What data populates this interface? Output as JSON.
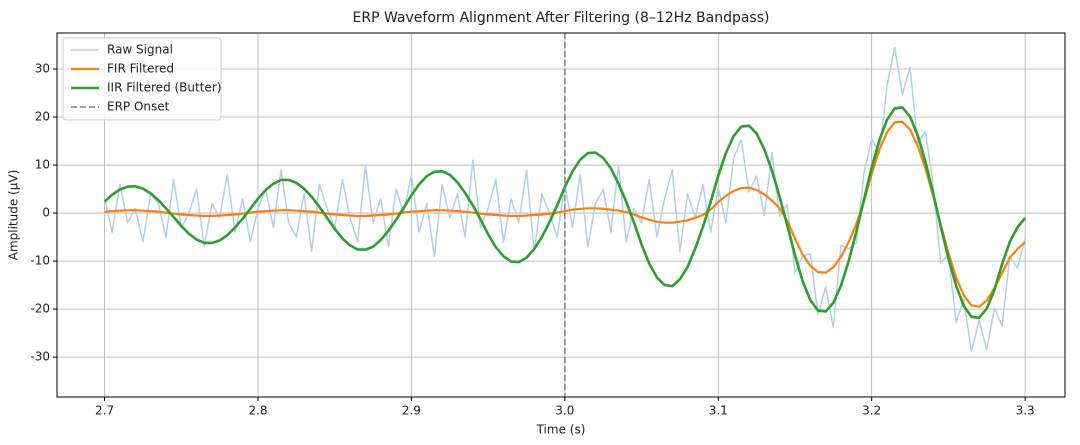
{
  "chart_data": {
    "type": "line",
    "title": "ERP Waveform Alignment After Filtering (8–12Hz Bandpass)",
    "xlabel": "Time (s)",
    "ylabel": "Amplitude (µV)",
    "x": [
      2.7,
      2.705,
      2.71,
      2.715,
      2.72,
      2.725,
      2.73,
      2.735,
      2.74,
      2.745,
      2.75,
      2.755,
      2.76,
      2.765,
      2.77,
      2.775,
      2.78,
      2.785,
      2.79,
      2.795,
      2.8,
      2.805,
      2.81,
      2.815,
      2.82,
      2.825,
      2.83,
      2.835,
      2.84,
      2.845,
      2.85,
      2.855,
      2.86,
      2.865,
      2.87,
      2.875,
      2.88,
      2.885,
      2.89,
      2.895,
      2.9,
      2.905,
      2.91,
      2.915,
      2.92,
      2.925,
      2.93,
      2.935,
      2.94,
      2.945,
      2.95,
      2.955,
      2.96,
      2.965,
      2.97,
      2.975,
      2.98,
      2.985,
      2.99,
      2.995,
      3.0,
      3.005,
      3.01,
      3.015,
      3.02,
      3.025,
      3.03,
      3.035,
      3.04,
      3.045,
      3.05,
      3.055,
      3.06,
      3.065,
      3.07,
      3.075,
      3.08,
      3.085,
      3.09,
      3.095,
      3.1,
      3.105,
      3.11,
      3.115,
      3.12,
      3.125,
      3.13,
      3.135,
      3.14,
      3.145,
      3.15,
      3.155,
      3.16,
      3.165,
      3.17,
      3.175,
      3.18,
      3.185,
      3.19,
      3.195,
      3.2,
      3.205,
      3.21,
      3.215,
      3.22,
      3.225,
      3.23,
      3.235,
      3.24,
      3.245,
      3.25,
      3.255,
      3.26,
      3.265,
      3.27,
      3.275,
      3.28,
      3.285,
      3.29,
      3.295,
      3.3
    ],
    "series": [
      {
        "name": "Raw Signal",
        "color": "#b3d0e8",
        "width": 1.5,
        "values": [
          3,
          -4,
          6,
          -2,
          1,
          -6,
          4,
          2,
          -5,
          7,
          -3,
          0,
          5,
          -7,
          2,
          -1,
          8,
          -4,
          3,
          -6,
          1,
          5,
          -3,
          9,
          -2,
          -5,
          4,
          -8,
          6,
          1,
          -3,
          7,
          -1,
          -6,
          10,
          -2,
          3,
          -7,
          5,
          0,
          8,
          -4,
          2,
          -9,
          6,
          -1,
          4,
          -5,
          11,
          -3,
          1,
          7,
          -6,
          3,
          -2,
          9,
          -8,
          4,
          0,
          -5,
          6,
          -3,
          8,
          -7,
          2,
          5,
          -4,
          10,
          -6,
          1,
          -2,
          7,
          -5,
          3,
          9,
          -8,
          4,
          -1,
          6,
          -4,
          5.2,
          -2.0,
          11.4,
          15.3,
          4.4,
          7.7,
          -0.5,
          12.6,
          -0.6,
          1.8,
          -12.4,
          -9.0,
          -8.4,
          -21.2,
          -15.4,
          -23.8,
          -6.7,
          -7.4,
          -6.2,
          8.4,
          15.5,
          12.5,
          26.5,
          34.5,
          24.6,
          30.4,
          14.6,
          17.0,
          6.0,
          -10.4,
          -8.6,
          -22.8,
          -17.9,
          -28.9,
          -22.3,
          -28.5,
          -19.8,
          -23.5,
          -9.0,
          -11.5,
          -5.4
        ]
      },
      {
        "name": "FIR Filtered",
        "color": "#ff7f0e",
        "width": 2.2,
        "values": [
          0.3,
          0.4,
          0.5,
          0.6,
          0.6,
          0.5,
          0.4,
          0.3,
          0.1,
          -0.1,
          -0.3,
          -0.4,
          -0.5,
          -0.6,
          -0.6,
          -0.5,
          -0.4,
          -0.3,
          -0.1,
          0.1,
          0.3,
          0.4,
          0.5,
          0.6,
          0.6,
          0.5,
          0.4,
          0.3,
          0.1,
          -0.1,
          -0.3,
          -0.4,
          -0.5,
          -0.6,
          -0.6,
          -0.5,
          -0.4,
          -0.3,
          -0.1,
          0.1,
          0.3,
          0.4,
          0.5,
          0.6,
          0.6,
          0.5,
          0.4,
          0.3,
          0.1,
          -0.1,
          -0.3,
          -0.4,
          -0.5,
          -0.6,
          -0.6,
          -0.5,
          -0.4,
          -0.3,
          -0.1,
          0.1,
          0.4,
          0.7,
          0.9,
          1.0,
          1.0,
          0.9,
          0.7,
          0.5,
          0.2,
          -0.3,
          -0.9,
          -1.4,
          -1.8,
          -2.0,
          -2.0,
          -1.8,
          -1.5,
          -1.0,
          -0.4,
          0.7,
          2.3,
          3.6,
          4.6,
          5.2,
          5.3,
          4.8,
          3.9,
          2.6,
          1.0,
          -1.6,
          -5.3,
          -8.6,
          -11.0,
          -12.3,
          -12.4,
          -11.3,
          -9.1,
          -6.0,
          -2.3,
          2.4,
          8.2,
          13.2,
          16.8,
          18.9,
          19.0,
          17.4,
          14.0,
          9.3,
          3.6,
          -2.4,
          -8.3,
          -13.4,
          -17.1,
          -19.2,
          -19.5,
          -18.2,
          -15.6,
          -12.5,
          -9.3,
          -7.5,
          -6
        ]
      },
      {
        "name": "IIR Filtered (Butter)",
        "color": "#2ca02c",
        "width": 2.6,
        "values": [
          2.4,
          3.8,
          4.9,
          5.5,
          5.6,
          5.1,
          4.1,
          2.7,
          1.0,
          -0.8,
          -2.7,
          -4.3,
          -5.5,
          -6.2,
          -6.2,
          -5.7,
          -4.6,
          -3.0,
          -1.2,
          0.9,
          3.0,
          4.8,
          6.1,
          6.9,
          6.9,
          6.3,
          5.1,
          3.4,
          1.3,
          -1.0,
          -3.3,
          -5.3,
          -6.7,
          -7.6,
          -7.6,
          -7.0,
          -5.6,
          -3.7,
          -1.4,
          1.1,
          3.7,
          6.0,
          7.7,
          8.6,
          8.7,
          8.0,
          6.4,
          4.2,
          1.6,
          -1.3,
          -4.4,
          -7.1,
          -9.0,
          -10.1,
          -10.2,
          -9.3,
          -7.5,
          -5.0,
          -1.9,
          1.6,
          5.4,
          8.7,
          11.1,
          12.5,
          12.6,
          11.5,
          9.3,
          6.1,
          2.4,
          -1.9,
          -6.5,
          -10.5,
          -13.4,
          -15.0,
          -15.2,
          -13.8,
          -11.2,
          -7.4,
          -2.9,
          2.3,
          7.8,
          12.5,
          16.0,
          18.0,
          18.2,
          16.6,
          13.3,
          8.8,
          3.4,
          -2.6,
          -8.8,
          -14.2,
          -18.1,
          -20.3,
          -20.5,
          -18.7,
          -15.1,
          -10.0,
          -3.9,
          2.8,
          9.5,
          15.2,
          19.4,
          21.8,
          22.0,
          20.1,
          16.2,
          10.7,
          4.2,
          -2.8,
          -9.4,
          -15.1,
          -19.3,
          -21.6,
          -21.8,
          -19.9,
          -16.0,
          -10.6,
          -6.0,
          -3.0,
          -1.0
        ]
      }
    ],
    "vline": {
      "name": "ERP Onset",
      "x": 3.0,
      "color": "#808080"
    },
    "xlim": [
      2.669,
      3.326
    ],
    "ylim": [
      -38.3,
      37.5
    ],
    "xticks": [
      2.7,
      2.8,
      2.9,
      {
        "value": 3,
        "label": "3.0"
      },
      3.1,
      3.2,
      3.3
    ],
    "yticks": [
      -30,
      -20,
      -10,
      0,
      10,
      20,
      30
    ],
    "grid": true,
    "legend": "upper left"
  }
}
